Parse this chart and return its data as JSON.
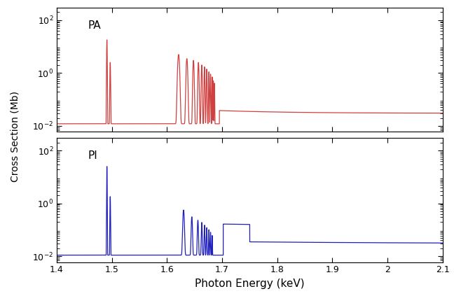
{
  "xlim": [
    1.4,
    2.1
  ],
  "xlabel": "Photon Energy (keV)",
  "ylabel": "Cross Section (Mb)",
  "pa_label": "PA",
  "pi_label": "PI",
  "pa_color": "#d04040",
  "pi_color": "#2020bb",
  "background": "#ffffff",
  "xticks": [
    1.4,
    1.5,
    1.6,
    1.7,
    1.8,
    1.9,
    2.0,
    2.1
  ],
  "yticks": [
    0.01,
    1.0,
    100.0
  ],
  "ylim": [
    0.006,
    300.0
  ]
}
